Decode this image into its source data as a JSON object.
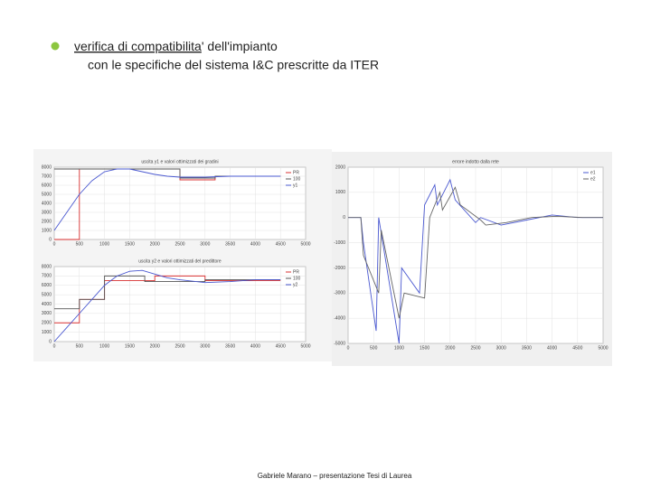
{
  "slide": {
    "bullet_underlined": "verifica di compatibilita",
    "bullet_rest": "' dell'impianto",
    "bullet_line2": "con le specifiche del sistema I&C prescritte da ITER",
    "footer": "Gabriele Marano – presentazione Tesi di Laurea"
  },
  "chart_data": [
    {
      "type": "line",
      "title": "uscita y1 e valori ottimizzati dei gradini",
      "xlim": [
        0,
        5000
      ],
      "ylim": [
        0,
        8000
      ],
      "xticks": [
        0,
        500,
        1000,
        1500,
        2000,
        2500,
        3000,
        3500,
        4000,
        4500,
        5000
      ],
      "yticks": [
        0,
        1000,
        2000,
        3000,
        4000,
        5000,
        6000,
        7000,
        8000
      ],
      "grid": true,
      "legend": "upper right",
      "series": [
        {
          "name": "PR",
          "color": "#d83030",
          "x": [
            0,
            500,
            500,
            2500,
            2500,
            3200,
            3200,
            4500
          ],
          "values": [
            0,
            0,
            7800,
            7800,
            6600,
            6600,
            7000,
            7000
          ]
        },
        {
          "name": "100",
          "color": "#555555",
          "x": [
            0,
            1000,
            1000,
            2500,
            2500,
            3200,
            3200,
            4500
          ],
          "values": [
            7800,
            7800,
            7800,
            7800,
            6800,
            6800,
            7000,
            7000
          ]
        },
        {
          "name": "y1",
          "color": "#4a58d0",
          "x": [
            0,
            250,
            500,
            750,
            1000,
            1250,
            1500,
            1750,
            2000,
            2250,
            2500,
            3000,
            3500,
            4000,
            4500
          ],
          "values": [
            1000,
            3000,
            5000,
            6500,
            7500,
            7800,
            7800,
            7500,
            7200,
            7000,
            6900,
            6900,
            7000,
            7000,
            7000
          ]
        }
      ]
    },
    {
      "type": "line",
      "title": "uscita y2 e valori ottimizzati del predittore",
      "xlim": [
        0,
        5000
      ],
      "ylim": [
        0,
        8000
      ],
      "xticks": [
        0,
        500,
        1000,
        1500,
        2000,
        2500,
        3000,
        3500,
        4000,
        4500,
        5000
      ],
      "yticks": [
        0,
        1000,
        2000,
        3000,
        4000,
        5000,
        6000,
        7000,
        8000
      ],
      "grid": true,
      "legend": "upper right",
      "series": [
        {
          "name": "PR",
          "color": "#d83030",
          "x": [
            0,
            500,
            500,
            1000,
            1000,
            2000,
            2000,
            3000,
            3000,
            4500
          ],
          "values": [
            2000,
            2000,
            4500,
            4500,
            6500,
            6500,
            7000,
            7000,
            6500,
            6500
          ]
        },
        {
          "name": "100",
          "color": "#555555",
          "x": [
            0,
            500,
            500,
            1000,
            1000,
            1800,
            1800,
            3000,
            3000,
            4500
          ],
          "values": [
            3500,
            3500,
            4500,
            4500,
            7000,
            7000,
            6400,
            6400,
            6600,
            6600
          ]
        },
        {
          "name": "y2",
          "color": "#4a58d0",
          "x": [
            0,
            250,
            500,
            750,
            1000,
            1250,
            1500,
            1750,
            2000,
            2250,
            2500,
            3000,
            3500,
            4000,
            4500
          ],
          "values": [
            0,
            1500,
            3000,
            4500,
            6000,
            7000,
            7500,
            7600,
            7200,
            6800,
            6600,
            6300,
            6400,
            6600,
            6600
          ]
        }
      ]
    },
    {
      "type": "line",
      "title": "errore indotto dalla rete",
      "xlim": [
        0,
        5000
      ],
      "ylim": [
        -5000,
        2000
      ],
      "xticks": [
        0,
        500,
        1000,
        1500,
        2000,
        2500,
        3000,
        3500,
        4000,
        4500,
        5000
      ],
      "yticks": [
        -5000,
        -4000,
        -3000,
        -2000,
        -1000,
        0,
        1000,
        2000
      ],
      "grid": true,
      "legend": "upper right",
      "series": [
        {
          "name": "e1",
          "color": "#4a58d0",
          "x": [
            0,
            250,
            300,
            550,
            600,
            1000,
            1050,
            1400,
            1500,
            1700,
            1750,
            2000,
            2100,
            2500,
            2600,
            3000,
            3500,
            4000,
            4500,
            5000
          ],
          "values": [
            0,
            0,
            -1000,
            -4500,
            0,
            -5000,
            -2000,
            -3000,
            500,
            1300,
            500,
            1500,
            700,
            -200,
            0,
            -300,
            -100,
            100,
            0,
            0
          ]
        },
        {
          "name": "e2",
          "color": "#666666",
          "x": [
            0,
            250,
            300,
            600,
            650,
            1000,
            1100,
            1500,
            1600,
            1800,
            1850,
            2100,
            2200,
            2600,
            2700,
            3100,
            3600,
            4100,
            4600,
            5000
          ],
          "values": [
            0,
            0,
            -1500,
            -3000,
            -500,
            -4000,
            -3000,
            -3200,
            0,
            1000,
            300,
            1200,
            500,
            -100,
            -300,
            -200,
            0,
            50,
            0,
            0
          ]
        }
      ]
    }
  ]
}
